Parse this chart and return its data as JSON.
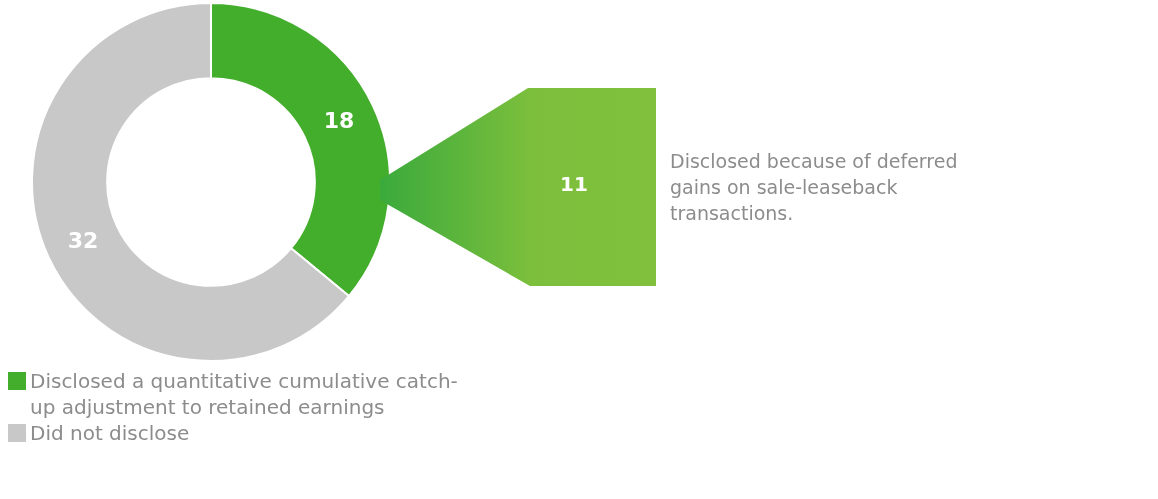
{
  "chart_data": {
    "type": "donut",
    "categories": [
      "Disclosed a quantitative cumulative catch-up adjustment to retained earnings",
      "Did not disclose"
    ],
    "values": [
      18,
      32
    ],
    "colors": [
      "#43ad2c",
      "#c8c8c8"
    ],
    "data_labels": true,
    "legend": "bottom",
    "annotations": [
      "11",
      "Disclosed because of deferred gains on sale-leaseback transactions."
    ]
  }
}
